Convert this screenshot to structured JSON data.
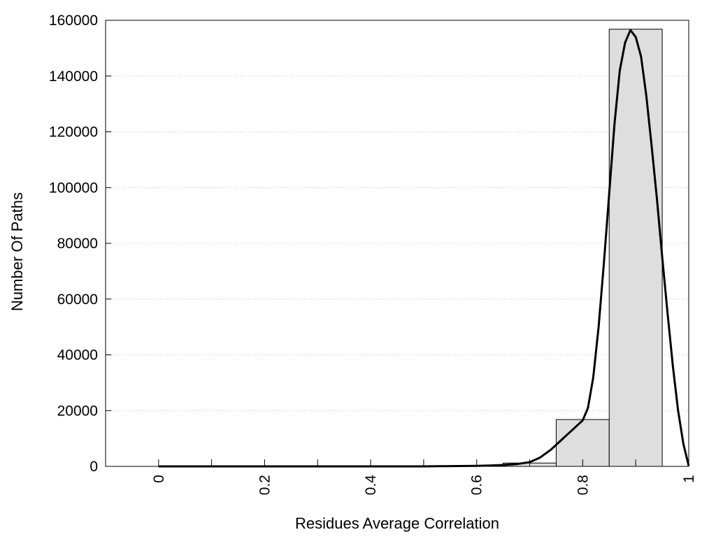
{
  "chart_data": {
    "type": "bar",
    "title": "",
    "xlabel": "Residues Average Correlation",
    "ylabel": "Number Of Paths",
    "xlim": [
      -0.1,
      1.0
    ],
    "ylim": [
      0,
      160000
    ],
    "x_ticks": [
      0,
      0.2,
      0.4,
      0.6,
      0.8,
      1
    ],
    "x_tick_labels": [
      "0",
      "0.2",
      "0.4",
      "0.6",
      "0.8",
      "1"
    ],
    "x_minor_ticks": [
      0.1,
      0.3,
      0.5,
      0.7,
      0.9
    ],
    "y_ticks": [
      0,
      20000,
      40000,
      60000,
      80000,
      100000,
      120000,
      140000,
      160000
    ],
    "y_tick_labels": [
      "0",
      "20000",
      "40000",
      "60000",
      "80000",
      "100000",
      "120000",
      "140000",
      "160000"
    ],
    "grid": "horizontal dotted",
    "bar_width": 0.1,
    "bars": [
      {
        "x": 0.0,
        "value": 0
      },
      {
        "x": 0.1,
        "value": 0
      },
      {
        "x": 0.2,
        "value": 0
      },
      {
        "x": 0.3,
        "value": 0
      },
      {
        "x": 0.4,
        "value": 0
      },
      {
        "x": 0.5,
        "value": 0
      },
      {
        "x": 0.6,
        "value": 200
      },
      {
        "x": 0.7,
        "value": 1200
      },
      {
        "x": 0.8,
        "value": 16800
      },
      {
        "x": 0.9,
        "value": 156800
      }
    ],
    "curve": {
      "x": [
        0.0,
        0.5,
        0.55,
        0.6,
        0.625,
        0.65,
        0.675,
        0.7,
        0.72,
        0.74,
        0.76,
        0.78,
        0.8,
        0.81,
        0.82,
        0.83,
        0.84,
        0.85,
        0.86,
        0.87,
        0.88,
        0.89,
        0.9,
        0.91,
        0.92,
        0.93,
        0.94,
        0.95,
        0.96,
        0.97,
        0.98,
        0.99,
        1.0
      ],
      "y": [
        0,
        0,
        100,
        200,
        300,
        500,
        800,
        1500,
        3200,
        6000,
        9500,
        13000,
        16500,
        21000,
        32000,
        50000,
        73000,
        98000,
        123000,
        142000,
        152000,
        156500,
        154000,
        147000,
        133000,
        115000,
        96000,
        75000,
        55000,
        36000,
        20000,
        8000,
        200
      ]
    },
    "colors": {
      "bar_fill": "#dedede",
      "bar_stroke": "#000000",
      "curve": "#000000",
      "grid": "#bbbbbb"
    }
  }
}
